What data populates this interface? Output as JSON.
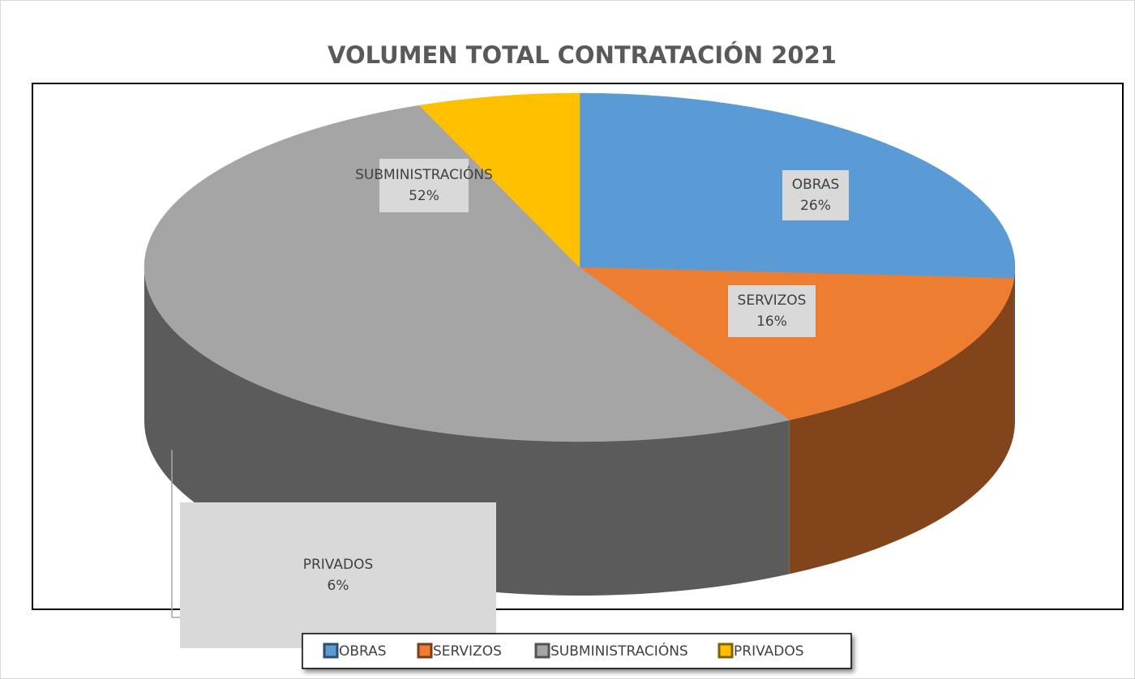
{
  "chart_data": {
    "type": "pie",
    "title": "VOLUMEN TOTAL CONTRATACIÓN 2021",
    "categories": [
      "OBRAS",
      "SERVIZOS",
      "SUBMINISTRACIÓNS",
      "PRIVADOS"
    ],
    "values": [
      26,
      16,
      52,
      6
    ],
    "value_labels": [
      "26%",
      "16%",
      "52%",
      "6%"
    ],
    "colors": [
      "#5b9bd5",
      "#ed7d31",
      "#a5a5a5",
      "#ffc000"
    ],
    "legend": "bottom"
  }
}
